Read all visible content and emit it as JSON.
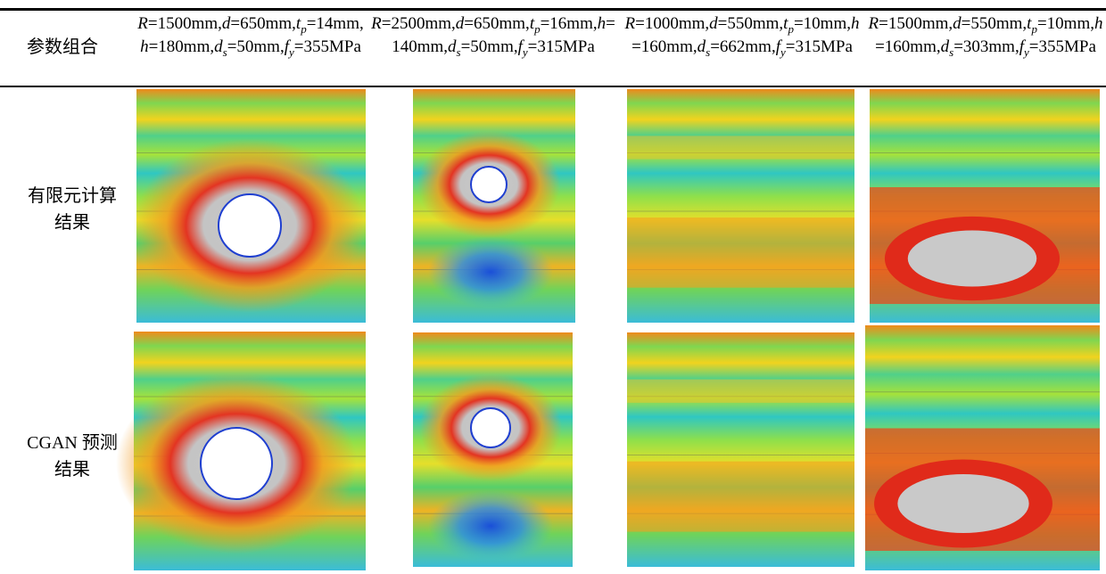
{
  "header": {
    "label": "参数组合",
    "cells": [
      "R=1500mm,d=650mm,tp=14mm,h=180mm,ds=50mm,fy=355MPa",
      "R=2500mm,d=650mm,tp=16mm,h=140mm,ds=50mm,fy=315MPa",
      "R=1000mm,d=550mm,tp=10mm,h=160mm,ds=662mm,fy=315MPa",
      "R=1500mm,d=550mm,tp=10mm,h=160mm,ds=303mm,fy=355MPa"
    ]
  },
  "rows": [
    {
      "label": "有限元计算结果"
    },
    {
      "label": "CGAN 预测结果"
    }
  ]
}
